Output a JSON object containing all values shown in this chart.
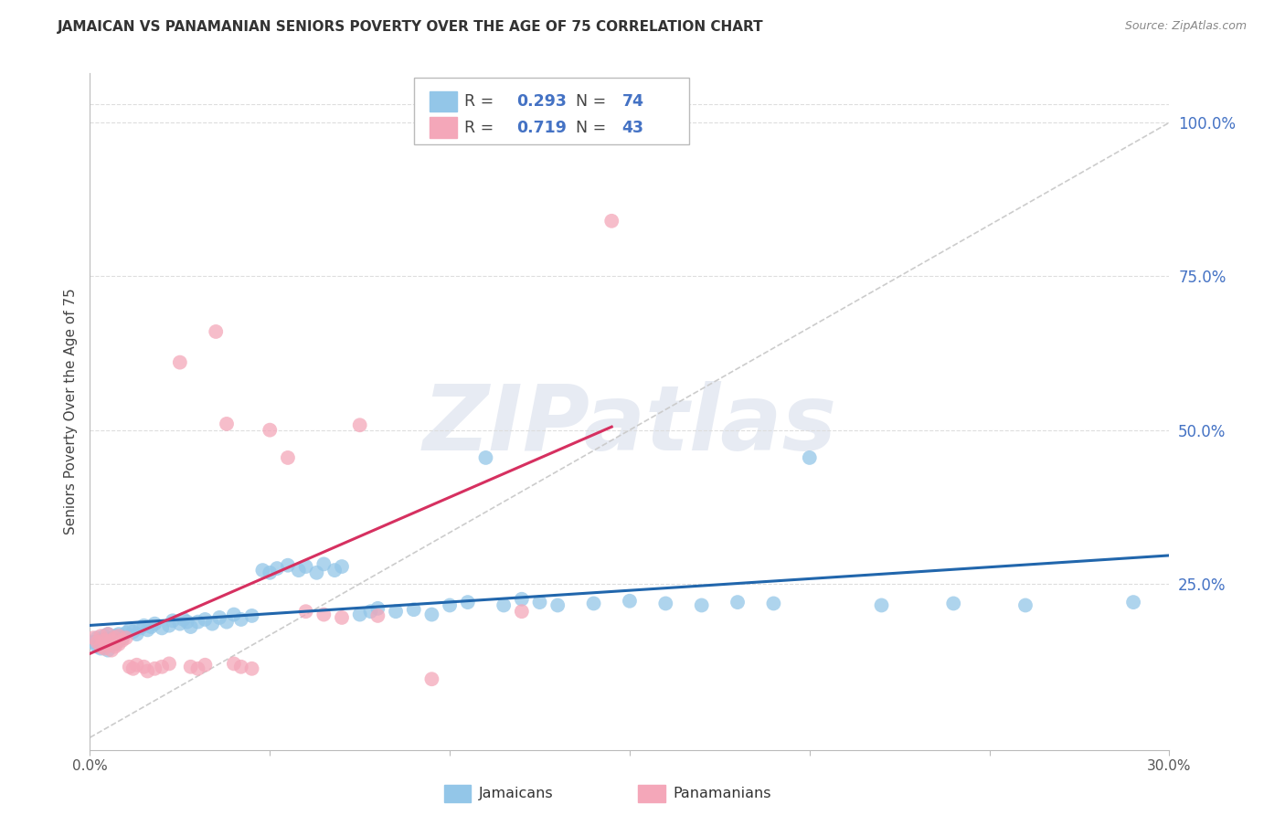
{
  "title": "JAMAICAN VS PANAMANIAN SENIORS POVERTY OVER THE AGE OF 75 CORRELATION CHART",
  "source": "Source: ZipAtlas.com",
  "ylabel": "Seniors Poverty Over the Age of 75",
  "xlim": [
    0.0,
    0.3
  ],
  "ylim": [
    -0.02,
    1.08
  ],
  "yticks_right": [
    0.25,
    0.5,
    0.75,
    1.0
  ],
  "yticklabels_right": [
    "25.0%",
    "50.0%",
    "75.0%",
    "100.0%"
  ],
  "legend_label1": "Jamaicans",
  "legend_label2": "Panamanians",
  "color_jamaicans": "#93c6e8",
  "color_panamanians": "#f4a7b9",
  "trend_color_jamaicans": "#2166ac",
  "trend_color_panamanians": "#d63060",
  "jamaicans_x": [
    0.001,
    0.002,
    0.002,
    0.003,
    0.003,
    0.004,
    0.004,
    0.005,
    0.005,
    0.006,
    0.006,
    0.007,
    0.007,
    0.008,
    0.008,
    0.009,
    0.01,
    0.011,
    0.012,
    0.013,
    0.014,
    0.015,
    0.016,
    0.017,
    0.018,
    0.02,
    0.022,
    0.023,
    0.025,
    0.026,
    0.027,
    0.028,
    0.03,
    0.032,
    0.034,
    0.036,
    0.038,
    0.04,
    0.042,
    0.045,
    0.048,
    0.05,
    0.052,
    0.055,
    0.058,
    0.06,
    0.063,
    0.065,
    0.068,
    0.07,
    0.075,
    0.078,
    0.08,
    0.085,
    0.09,
    0.095,
    0.1,
    0.105,
    0.11,
    0.115,
    0.12,
    0.125,
    0.13,
    0.14,
    0.15,
    0.16,
    0.17,
    0.18,
    0.19,
    0.2,
    0.22,
    0.24,
    0.26,
    0.29
  ],
  "jamaicans_y": [
    0.155,
    0.162,
    0.148,
    0.158,
    0.145,
    0.165,
    0.15,
    0.168,
    0.142,
    0.16,
    0.155,
    0.165,
    0.152,
    0.168,
    0.158,
    0.162,
    0.17,
    0.175,
    0.172,
    0.168,
    0.178,
    0.182,
    0.175,
    0.18,
    0.185,
    0.178,
    0.182,
    0.19,
    0.185,
    0.192,
    0.188,
    0.18,
    0.188,
    0.192,
    0.185,
    0.195,
    0.188,
    0.2,
    0.192,
    0.198,
    0.272,
    0.268,
    0.275,
    0.28,
    0.272,
    0.278,
    0.268,
    0.282,
    0.272,
    0.278,
    0.2,
    0.205,
    0.21,
    0.205,
    0.208,
    0.2,
    0.215,
    0.22,
    0.455,
    0.215,
    0.225,
    0.22,
    0.215,
    0.218,
    0.222,
    0.218,
    0.215,
    0.22,
    0.218,
    0.455,
    0.215,
    0.218,
    0.215,
    0.22
  ],
  "panamanians_x": [
    0.001,
    0.002,
    0.003,
    0.003,
    0.004,
    0.004,
    0.005,
    0.005,
    0.006,
    0.006,
    0.007,
    0.007,
    0.008,
    0.008,
    0.009,
    0.01,
    0.011,
    0.012,
    0.013,
    0.015,
    0.016,
    0.018,
    0.02,
    0.022,
    0.025,
    0.028,
    0.03,
    0.032,
    0.035,
    0.038,
    0.04,
    0.042,
    0.045,
    0.05,
    0.055,
    0.06,
    0.065,
    0.07,
    0.075,
    0.08,
    0.095,
    0.12,
    0.145
  ],
  "panamanians_y": [
    0.162,
    0.155,
    0.165,
    0.148,
    0.158,
    0.145,
    0.168,
    0.152,
    0.158,
    0.142,
    0.162,
    0.148,
    0.165,
    0.152,
    0.158,
    0.162,
    0.115,
    0.112,
    0.118,
    0.115,
    0.108,
    0.112,
    0.115,
    0.12,
    0.61,
    0.115,
    0.112,
    0.118,
    0.66,
    0.51,
    0.12,
    0.115,
    0.112,
    0.5,
    0.455,
    0.205,
    0.2,
    0.195,
    0.508,
    0.198,
    0.095,
    0.205,
    0.84
  ],
  "background_color": "#ffffff",
  "grid_color": "#dddddd",
  "watermark_text": "ZIPatlas",
  "title_fontsize": 11,
  "axis_label_fontsize": 11,
  "tick_fontsize": 11
}
